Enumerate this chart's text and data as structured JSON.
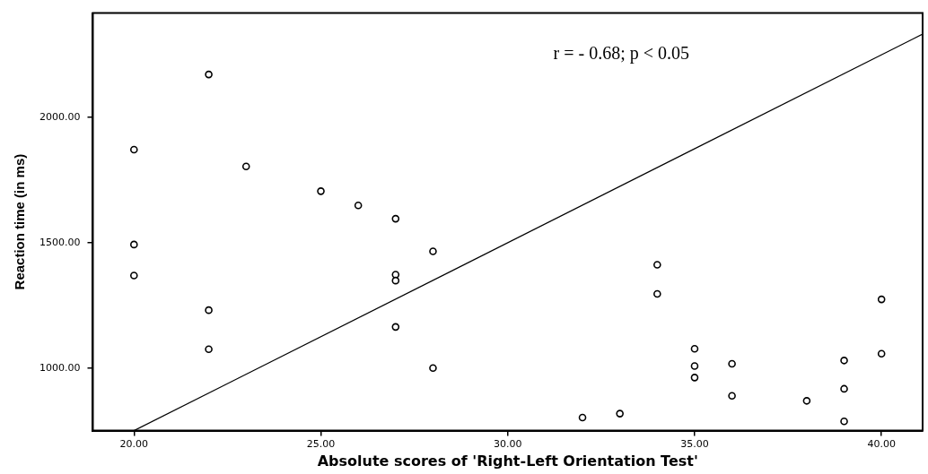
{
  "chart_data": {
    "type": "scatter",
    "xlabel": "Absolute scores of 'Right-Left Orientation Test'",
    "ylabel": "Reaction time (in ms)",
    "annotations": [
      "r = - 0.68; p < 0.05"
    ],
    "x": [
      20,
      20,
      20,
      22,
      22,
      22,
      23,
      25,
      26,
      27,
      27,
      27,
      27,
      28,
      28,
      32,
      33,
      34,
      34,
      35,
      35,
      35,
      36,
      36,
      38,
      39,
      39,
      39,
      40,
      40
    ],
    "series": [
      {
        "type": "scatter",
        "color": "#000000",
        "marker": "circle",
        "values": [
          1872,
          1493,
          1369,
          2172,
          1231,
          1075,
          1805,
          1706,
          1649,
          1596,
          1373,
          1349,
          1164,
          1466,
          1000,
          802,
          818,
          1412,
          1296,
          1077,
          1008,
          962,
          1017,
          889,
          869,
          1030,
          917,
          787,
          1274,
          1057
        ]
      },
      {
        "type": "line",
        "color": "#000000",
        "marker": "none",
        "line_style": "solid",
        "x": [
          20,
          41.1
        ],
        "values": [
          750,
          2333
        ]
      }
    ],
    "xlim": [
      18.9,
      41.1
    ],
    "ylim": [
      750,
      2417
    ],
    "xticks": [
      {
        "value": 20,
        "label": "20.00"
      },
      {
        "value": 25,
        "label": "25.00"
      },
      {
        "value": 30,
        "label": "30.00"
      },
      {
        "value": 35,
        "label": "35.00"
      },
      {
        "value": 40,
        "label": "40.00"
      }
    ],
    "yticks": [
      {
        "value": 1000,
        "label": "1000.00"
      },
      {
        "value": 1500,
        "label": "1500.00"
      },
      {
        "value": 2000,
        "label": "2000.00"
      }
    ],
    "grid": false,
    "legend": false
  }
}
